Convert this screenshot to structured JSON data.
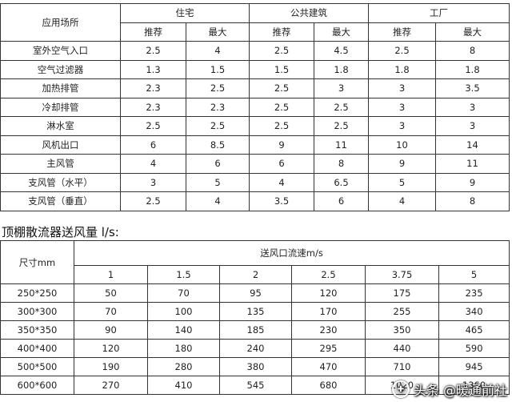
{
  "table1": {
    "header_place": "应用场所",
    "groups": [
      "住宅",
      "公共建筑",
      "工厂"
    ],
    "subheaders": [
      "推荐",
      "最大",
      "推荐",
      "最大",
      "推荐",
      "最大"
    ],
    "rows": [
      {
        "place": "室外空气入口",
        "values": [
          "2.5",
          "4",
          "2.5",
          "4.5",
          "2.5",
          "8"
        ]
      },
      {
        "place": "空气过滤器",
        "values": [
          "1.3",
          "1.5",
          "1.5",
          "1.8",
          "1.8",
          "1.8"
        ]
      },
      {
        "place": "加热排管",
        "values": [
          "2.3",
          "2.5",
          "2.5",
          "3",
          "3",
          "3.5"
        ]
      },
      {
        "place": "冷却排管",
        "values": [
          "2.3",
          "2.3",
          "2.5",
          "2.5",
          "3",
          "3"
        ]
      },
      {
        "place": "淋水室",
        "values": [
          "2.5",
          "2.5",
          "2.5",
          "2.5",
          "3",
          "3"
        ]
      },
      {
        "place": "风机出口",
        "values": [
          "6",
          "8.5",
          "9",
          "11",
          "10",
          "14"
        ]
      },
      {
        "place": "主风管",
        "values": [
          "4",
          "6",
          "6",
          "8",
          "9",
          "11"
        ]
      },
      {
        "place": "支风管（水平）",
        "values": [
          "3",
          "5",
          "4",
          "6.5",
          "5",
          "9"
        ]
      },
      {
        "place": "支风管（垂直）",
        "values": [
          "2.5",
          "4",
          "3.5",
          "6",
          "4",
          "8"
        ]
      }
    ]
  },
  "title2": "顶棚散流器送风量 l/s:",
  "table2": {
    "size_header": "尺寸mm",
    "speed_header": "送风口流速m/s",
    "speeds": [
      "1",
      "1.5",
      "2",
      "2.5",
      "3.75",
      "5"
    ],
    "rows": [
      {
        "size": "250*250",
        "values": [
          "50",
          "70",
          "95",
          "120",
          "175",
          "235"
        ]
      },
      {
        "size": "300*300",
        "values": [
          "70",
          "100",
          "135",
          "170",
          "255",
          "340"
        ]
      },
      {
        "size": "350*350",
        "values": [
          "90",
          "140",
          "185",
          "230",
          "350",
          "465"
        ]
      },
      {
        "size": "400*400",
        "values": [
          "120",
          "180",
          "240",
          "295",
          "440",
          "590"
        ]
      },
      {
        "size": "500*500",
        "values": [
          "190",
          "280",
          "380",
          "470",
          "710",
          "945"
        ]
      },
      {
        "size": "600*600",
        "values": [
          "270",
          "410",
          "545",
          "680",
          "1020",
          "1360"
        ]
      }
    ]
  },
  "watermark": {
    "text": "头条 @暖通前社",
    "icon": "headline-logo-icon"
  }
}
